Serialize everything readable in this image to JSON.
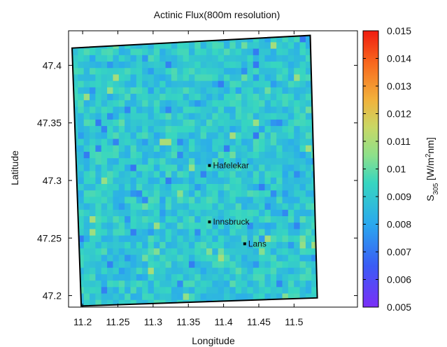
{
  "chart_data": {
    "type": "heatmap",
    "title": "Actinic Flux(800m resolution)",
    "xlabel": "Longitude",
    "ylabel": "Latitude",
    "colorbar_label": "S305 [W/m2nm]",
    "colorbar_label_parts": {
      "base": "S",
      "sub": "305",
      "pre": " [W/m",
      "sup": "2",
      "post": "nm]"
    },
    "xlim": [
      11.18,
      11.59
    ],
    "ylim": [
      47.19,
      47.43
    ],
    "xticks": [
      "11.2",
      "11.25",
      "11.3",
      "11.35",
      "11.4",
      "11.45",
      "11.5"
    ],
    "yticks": [
      "47.2",
      "47.25",
      "47.3",
      "47.35",
      "47.4"
    ],
    "colorbar_range": [
      0.005,
      0.015
    ],
    "colorbar_ticks": [
      "0.005",
      "0.006",
      "0.007",
      "0.008",
      "0.009",
      "0.01",
      "0.011",
      "0.012",
      "0.013",
      "0.014",
      "0.015"
    ],
    "colormap": "rainbow",
    "typical_value": 0.009,
    "domain_corners": [
      {
        "lon": 11.185,
        "lat": 47.415
      },
      {
        "lon": 11.523,
        "lat": 47.426
      },
      {
        "lon": 11.533,
        "lat": 47.198
      },
      {
        "lon": 11.198,
        "lat": 47.191
      }
    ],
    "locations": [
      {
        "name": "Hafelekar",
        "lon": 11.38,
        "lat": 47.313
      },
      {
        "name": "Innsbruck",
        "lon": 11.38,
        "lat": 47.264
      },
      {
        "name": "Lans",
        "lon": 11.43,
        "lat": 47.245
      }
    ]
  }
}
